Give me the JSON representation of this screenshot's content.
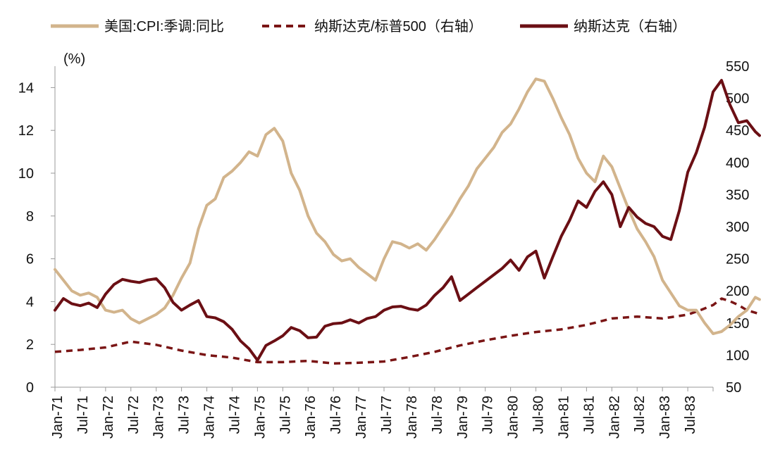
{
  "chart_data": {
    "type": "line",
    "title": "",
    "y_left_unit": "(%)",
    "ylim_left": [
      0,
      15
    ],
    "yticks_left": [
      0,
      2,
      4,
      6,
      8,
      10,
      12,
      14
    ],
    "ylim_right": [
      50,
      550
    ],
    "yticks_right": [
      50,
      100,
      150,
      200,
      250,
      300,
      350,
      400,
      450,
      500,
      550
    ],
    "x_range": [
      "1971-01",
      "1983-12"
    ],
    "x_tick_labels": [
      "Jan-71",
      "Jul-71",
      "Jan-72",
      "Jul-72",
      "Jan-73",
      "Jul-73",
      "Jan-74",
      "Jul-74",
      "Jan-75",
      "Jul-75",
      "Jan-76",
      "Jul-76",
      "Jan-77",
      "Jul-77",
      "Jan-78",
      "Jul-78",
      "Jan-79",
      "Jul-79",
      "Jan-80",
      "Jul-80",
      "Jan-81",
      "Jul-81",
      "Jan-82",
      "Jul-82",
      "Jan-83",
      "Jul-83"
    ],
    "legend_position": "top",
    "series": [
      {
        "name": "美国:CPI:季调:同比",
        "axis": "left",
        "color": "#d2b48c",
        "style": "solid",
        "points": [
          [
            0,
            5.5
          ],
          [
            2,
            5.0
          ],
          [
            4,
            4.5
          ],
          [
            6,
            4.3
          ],
          [
            8,
            4.4
          ],
          [
            10,
            4.2
          ],
          [
            12,
            3.6
          ],
          [
            14,
            3.5
          ],
          [
            16,
            3.6
          ],
          [
            18,
            3.2
          ],
          [
            20,
            3.0
          ],
          [
            22,
            3.2
          ],
          [
            24,
            3.4
          ],
          [
            26,
            3.7
          ],
          [
            28,
            4.3
          ],
          [
            30,
            5.1
          ],
          [
            32,
            5.8
          ],
          [
            34,
            7.4
          ],
          [
            36,
            8.5
          ],
          [
            38,
            8.8
          ],
          [
            40,
            9.8
          ],
          [
            42,
            10.1
          ],
          [
            44,
            10.5
          ],
          [
            46,
            11.0
          ],
          [
            48,
            10.8
          ],
          [
            50,
            11.8
          ],
          [
            52,
            12.1
          ],
          [
            54,
            11.5
          ],
          [
            56,
            10.0
          ],
          [
            58,
            9.2
          ],
          [
            60,
            8.0
          ],
          [
            62,
            7.2
          ],
          [
            64,
            6.8
          ],
          [
            66,
            6.2
          ],
          [
            68,
            5.9
          ],
          [
            70,
            6.0
          ],
          [
            72,
            5.6
          ],
          [
            74,
            5.3
          ],
          [
            76,
            5.0
          ],
          [
            78,
            6.0
          ],
          [
            80,
            6.8
          ],
          [
            82,
            6.7
          ],
          [
            84,
            6.5
          ],
          [
            86,
            6.7
          ],
          [
            88,
            6.4
          ],
          [
            90,
            6.9
          ],
          [
            92,
            7.5
          ],
          [
            94,
            8.1
          ],
          [
            96,
            8.8
          ],
          [
            98,
            9.4
          ],
          [
            100,
            10.2
          ],
          [
            102,
            10.7
          ],
          [
            104,
            11.2
          ],
          [
            106,
            11.9
          ],
          [
            108,
            12.3
          ],
          [
            110,
            13.0
          ],
          [
            112,
            13.8
          ],
          [
            114,
            14.4
          ],
          [
            116,
            14.3
          ],
          [
            118,
            13.5
          ],
          [
            120,
            12.6
          ],
          [
            122,
            11.8
          ],
          [
            124,
            10.7
          ],
          [
            126,
            10.0
          ],
          [
            128,
            9.6
          ],
          [
            130,
            10.8
          ],
          [
            132,
            10.3
          ],
          [
            134,
            9.3
          ],
          [
            136,
            8.3
          ],
          [
            138,
            7.4
          ],
          [
            140,
            6.8
          ],
          [
            142,
            6.1
          ],
          [
            144,
            5.0
          ],
          [
            146,
            4.4
          ],
          [
            148,
            3.8
          ],
          [
            150,
            3.6
          ],
          [
            152,
            3.6
          ],
          [
            154,
            3.0
          ],
          [
            156,
            2.5
          ],
          [
            158,
            2.6
          ],
          [
            160,
            2.9
          ],
          [
            162,
            3.3
          ],
          [
            164,
            3.6
          ],
          [
            166,
            4.2
          ],
          [
            167,
            4.1
          ]
        ]
      },
      {
        "name": "纳斯达克/标普500（右轴）",
        "axis": "right",
        "color": "#7a1515",
        "style": "dashed",
        "points": [
          [
            0,
            105
          ],
          [
            6,
            108
          ],
          [
            12,
            112
          ],
          [
            18,
            121
          ],
          [
            24,
            116
          ],
          [
            30,
            107
          ],
          [
            36,
            100
          ],
          [
            42,
            96
          ],
          [
            48,
            89
          ],
          [
            54,
            89
          ],
          [
            60,
            91
          ],
          [
            66,
            87
          ],
          [
            72,
            88
          ],
          [
            78,
            90
          ],
          [
            84,
            97
          ],
          [
            90,
            105
          ],
          [
            96,
            115
          ],
          [
            102,
            123
          ],
          [
            108,
            130
          ],
          [
            114,
            136
          ],
          [
            120,
            140
          ],
          [
            126,
            147
          ],
          [
            132,
            157
          ],
          [
            138,
            160
          ],
          [
            144,
            157
          ],
          [
            150,
            163
          ],
          [
            153,
            170
          ],
          [
            156,
            178
          ],
          [
            158,
            188
          ],
          [
            160,
            184
          ],
          [
            162,
            178
          ],
          [
            164,
            170
          ],
          [
            166,
            166
          ],
          [
            167,
            164
          ]
        ]
      },
      {
        "name": "纳斯达克（右轴）",
        "axis": "right",
        "color": "#6b0f14",
        "style": "solid",
        "points": [
          [
            0,
            170
          ],
          [
            2,
            188
          ],
          [
            4,
            180
          ],
          [
            6,
            177
          ],
          [
            8,
            181
          ],
          [
            10,
            174
          ],
          [
            12,
            195
          ],
          [
            14,
            210
          ],
          [
            16,
            218
          ],
          [
            18,
            215
          ],
          [
            20,
            213
          ],
          [
            22,
            217
          ],
          [
            24,
            219
          ],
          [
            26,
            205
          ],
          [
            28,
            182
          ],
          [
            30,
            170
          ],
          [
            32,
            178
          ],
          [
            34,
            185
          ],
          [
            36,
            160
          ],
          [
            38,
            158
          ],
          [
            40,
            152
          ],
          [
            42,
            140
          ],
          [
            44,
            122
          ],
          [
            46,
            110
          ],
          [
            48,
            92
          ],
          [
            50,
            115
          ],
          [
            52,
            122
          ],
          [
            54,
            130
          ],
          [
            56,
            143
          ],
          [
            58,
            138
          ],
          [
            60,
            127
          ],
          [
            62,
            128
          ],
          [
            64,
            145
          ],
          [
            66,
            149
          ],
          [
            68,
            150
          ],
          [
            70,
            155
          ],
          [
            72,
            150
          ],
          [
            74,
            157
          ],
          [
            76,
            160
          ],
          [
            78,
            170
          ],
          [
            80,
            175
          ],
          [
            82,
            176
          ],
          [
            84,
            172
          ],
          [
            86,
            170
          ],
          [
            88,
            178
          ],
          [
            90,
            193
          ],
          [
            92,
            205
          ],
          [
            94,
            222
          ],
          [
            96,
            185
          ],
          [
            98,
            195
          ],
          [
            100,
            205
          ],
          [
            102,
            215
          ],
          [
            104,
            225
          ],
          [
            106,
            235
          ],
          [
            108,
            248
          ],
          [
            110,
            232
          ],
          [
            112,
            253
          ],
          [
            114,
            262
          ],
          [
            116,
            220
          ],
          [
            118,
            253
          ],
          [
            120,
            285
          ],
          [
            122,
            310
          ],
          [
            124,
            340
          ],
          [
            126,
            330
          ],
          [
            128,
            355
          ],
          [
            130,
            370
          ],
          [
            132,
            350
          ],
          [
            134,
            300
          ],
          [
            136,
            330
          ],
          [
            138,
            315
          ],
          [
            140,
            305
          ],
          [
            142,
            300
          ],
          [
            144,
            285
          ],
          [
            146,
            280
          ],
          [
            148,
            325
          ],
          [
            150,
            385
          ],
          [
            152,
            415
          ],
          [
            154,
            455
          ],
          [
            156,
            510
          ],
          [
            158,
            528
          ],
          [
            160,
            490
          ],
          [
            162,
            462
          ],
          [
            164,
            465
          ],
          [
            166,
            448
          ],
          [
            167,
            442
          ]
        ]
      }
    ]
  }
}
